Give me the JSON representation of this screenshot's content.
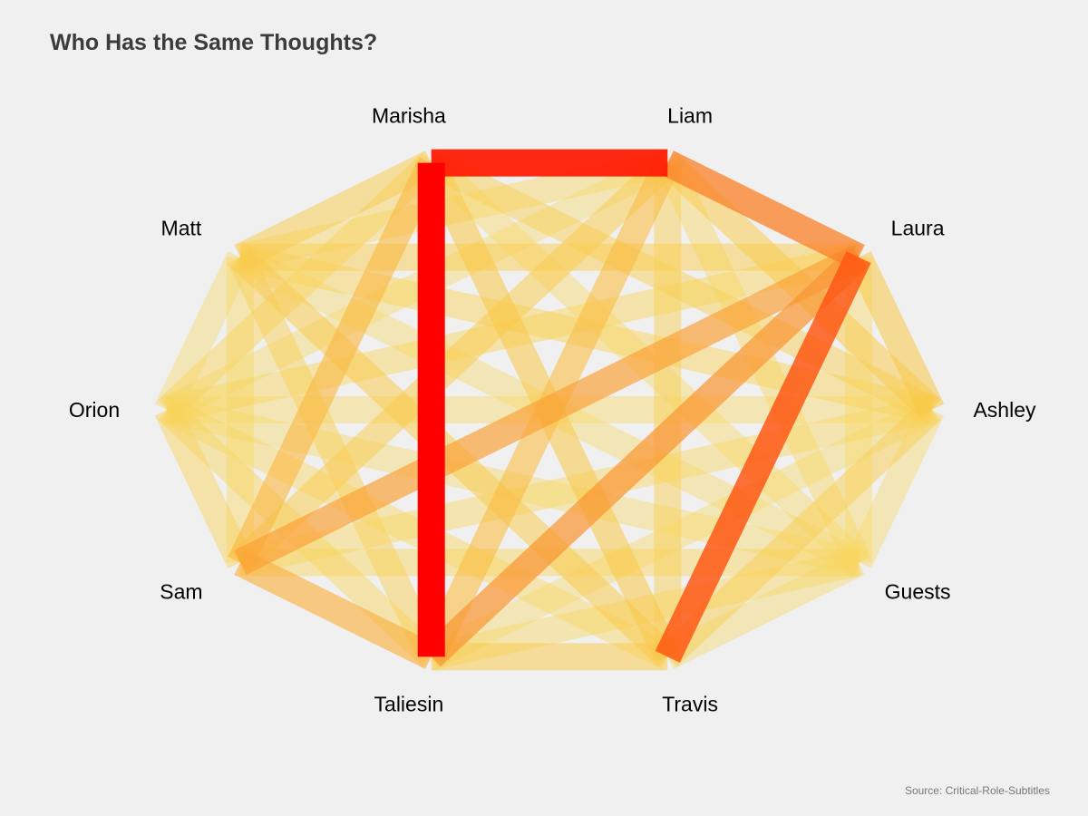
{
  "title": "Who Has the Same Thoughts?",
  "source": "Source: Critical-Role-Subtitles",
  "chart_data": {
    "type": "network",
    "title": "Who Has the Same Thoughts?",
    "layout": "circle",
    "nodes": [
      "Liam",
      "Laura",
      "Ashley",
      "Guests",
      "Travis",
      "Taliesin",
      "Sam",
      "Orion",
      "Matt",
      "Marisha"
    ],
    "edge_value_scale": "0 (faint pale yellow, low) to 1 (red, high)",
    "edges": [
      {
        "source": "Marisha",
        "target": "Taliesin",
        "value": 1.0
      },
      {
        "source": "Liam",
        "target": "Marisha",
        "value": 0.92
      },
      {
        "source": "Laura",
        "target": "Travis",
        "value": 0.75
      },
      {
        "source": "Liam",
        "target": "Laura",
        "value": 0.62
      },
      {
        "source": "Laura",
        "target": "Taliesin",
        "value": 0.55
      },
      {
        "source": "Laura",
        "target": "Sam",
        "value": 0.5
      },
      {
        "source": "Sam",
        "target": "Taliesin",
        "value": 0.42
      },
      {
        "source": "Marisha",
        "target": "Sam",
        "value": 0.38
      },
      {
        "source": "Liam",
        "target": "Taliesin",
        "value": 0.36
      },
      {
        "source": "Marisha",
        "target": "Travis",
        "value": 0.3
      },
      {
        "source": "Laura",
        "target": "Ashley",
        "value": 0.3
      },
      {
        "source": "Liam",
        "target": "Ashley",
        "value": 0.28
      },
      {
        "source": "Travis",
        "target": "Taliesin",
        "value": 0.28
      },
      {
        "source": "Matt",
        "target": "Travis",
        "value": 0.27
      },
      {
        "source": "Liam",
        "target": "Sam",
        "value": 0.26
      },
      {
        "source": "Marisha",
        "target": "Matt",
        "value": 0.26
      },
      {
        "source": "Ashley",
        "target": "Travis",
        "value": 0.24
      },
      {
        "source": "Matt",
        "target": "Laura",
        "value": 0.24
      },
      {
        "source": "Marisha",
        "target": "Ashley",
        "value": 0.22
      },
      {
        "source": "Liam",
        "target": "Travis",
        "value": 0.22
      },
      {
        "source": "Matt",
        "target": "Taliesin",
        "value": 0.22
      },
      {
        "source": "Marisha",
        "target": "Orion",
        "value": 0.2
      },
      {
        "source": "Orion",
        "target": "Sam",
        "value": 0.2
      },
      {
        "source": "Matt",
        "target": "Ashley",
        "value": 0.2
      },
      {
        "source": "Orion",
        "target": "Laura",
        "value": 0.19
      },
      {
        "source": "Guests",
        "target": "Sam",
        "value": 0.18
      },
      {
        "source": "Orion",
        "target": "Taliesin",
        "value": 0.18
      },
      {
        "source": "Liam",
        "target": "Guests",
        "value": 0.16
      },
      {
        "source": "Liam",
        "target": "Matt",
        "value": 0.16
      },
      {
        "source": "Guests",
        "target": "Taliesin",
        "value": 0.16
      },
      {
        "source": "Orion",
        "target": "Travis",
        "value": 0.16
      },
      {
        "source": "Ashley",
        "target": "Sam",
        "value": 0.16
      },
      {
        "source": "Matt",
        "target": "Sam",
        "value": 0.15
      },
      {
        "source": "Orion",
        "target": "Ashley",
        "value": 0.14
      },
      {
        "source": "Marisha",
        "target": "Guests",
        "value": 0.14
      },
      {
        "source": "Laura",
        "target": "Guests",
        "value": 0.14
      },
      {
        "source": "Guests",
        "target": "Travis",
        "value": 0.12
      },
      {
        "source": "Ashley",
        "target": "Guests",
        "value": 0.12
      },
      {
        "source": "Orion",
        "target": "Guests",
        "value": 0.12
      },
      {
        "source": "Matt",
        "target": "Guests",
        "value": 0.12
      },
      {
        "source": "Matt",
        "target": "Orion",
        "value": 0.12
      },
      {
        "source": "Liam",
        "target": "Orion",
        "value": 0.12
      },
      {
        "source": "Ashley",
        "target": "Taliesin",
        "value": 0.12
      }
    ]
  }
}
